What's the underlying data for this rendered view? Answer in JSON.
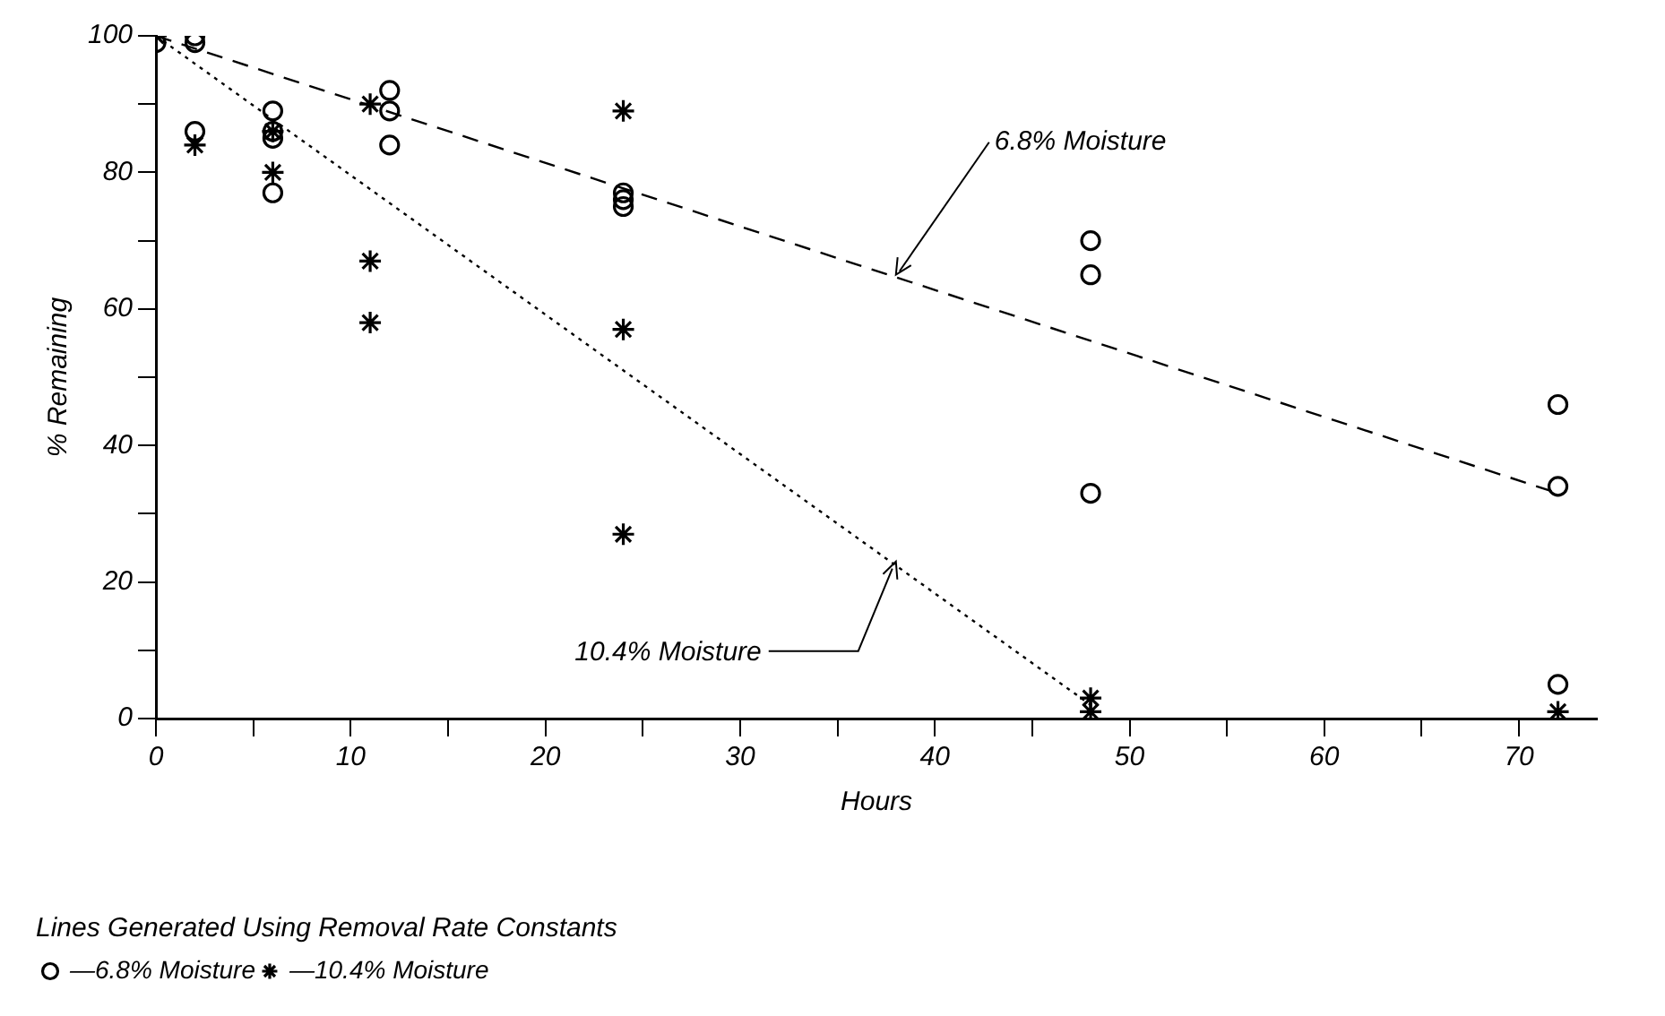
{
  "chart_data": {
    "type": "scatter",
    "xlabel": "Hours",
    "ylabel": "% Remaining",
    "legend_title": "Lines Generated Using Removal Rate Constants",
    "legend": "bottom left",
    "grid": false,
    "xlim": [
      0,
      74
    ],
    "ylim": [
      0,
      100
    ],
    "xticks": [
      0,
      {
        "value": 5,
        "label": null
      },
      10,
      {
        "value": 15,
        "label": null
      },
      20,
      {
        "value": 25,
        "label": null
      },
      30,
      {
        "value": 35,
        "label": null
      },
      40,
      {
        "value": 45,
        "label": null
      },
      50,
      {
        "value": 55,
        "label": null
      },
      60,
      {
        "value": 65,
        "label": null
      },
      70
    ],
    "yticks": [
      0,
      {
        "value": 10,
        "label": null
      },
      20,
      {
        "value": 30,
        "label": null
      },
      40,
      {
        "value": 50,
        "label": null
      },
      60,
      {
        "value": 70,
        "label": null
      },
      80,
      {
        "value": 90,
        "label": null
      },
      100
    ],
    "series": [
      {
        "name": "—6.8% Moisture",
        "color": "#000000",
        "marker": "circle",
        "x": [
          0,
          2,
          2,
          2,
          6,
          6,
          6,
          6,
          12,
          12,
          12,
          24,
          24,
          24,
          48,
          48,
          48,
          72,
          72,
          72
        ],
        "values": [
          99,
          100,
          99,
          86,
          89,
          86,
          85,
          77,
          92,
          89,
          84,
          77,
          76,
          75,
          70,
          65,
          33,
          46,
          34,
          5
        ]
      },
      {
        "name": "—10.4% Moisture",
        "color": "#000000",
        "marker": "cross",
        "x": [
          0,
          2,
          6,
          6,
          11,
          11,
          11,
          24,
          24,
          24,
          48,
          48,
          72
        ],
        "values": [
          100,
          84,
          86,
          80,
          90,
          67,
          58,
          89,
          57,
          27,
          3,
          1,
          1
        ]
      },
      {
        "type": "line",
        "color": "#000000",
        "marker": "none",
        "line_style": "dashed",
        "x": [
          0,
          72
        ],
        "values": [
          100,
          33
        ]
      },
      {
        "type": "line",
        "color": "#000000",
        "marker": "none",
        "line_style": "dotted",
        "x": [
          0,
          48
        ],
        "values": [
          100,
          2
        ]
      }
    ],
    "annotations": [
      {
        "text": "6.8% Moisture",
        "x": 38,
        "y": 65
      },
      {
        "text": "10.4% Moisture",
        "x": 38,
        "y": 23
      }
    ]
  }
}
